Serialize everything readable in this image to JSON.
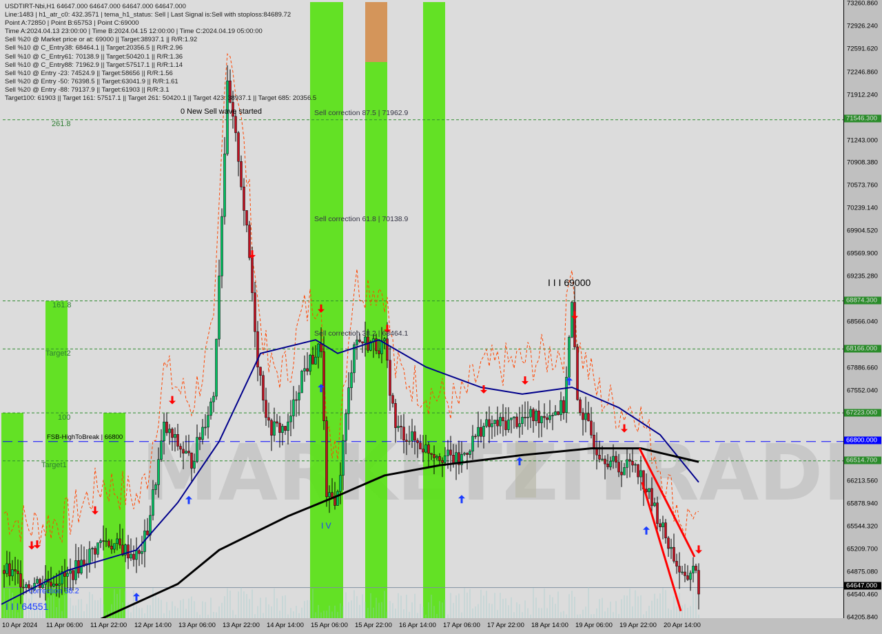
{
  "header": {
    "lines": [
      "USDTIRT-Nbi,H1  64647.000 64647.000 64647.000 64647.000",
      "Line:1483 | h1_atr_c0: 432.3571 | tema_h1_status: Sell | Last Signal is:Sell with stoploss:84689.72",
      "Point A:72850 | Point B:65753 | Point C:69000",
      "Time A:2024.04.13 23:00:00 | Time B:2024.04.15 12:00:00 | Time C:2024.04.19 05:00:00",
      "Sell %20 @ Market price or at: 69000 || Target:38937.1 || R/R:1.92",
      "Sell %10 @ C_Entry38: 68464.1 || Target:20356.5 || R/R:2.96",
      "Sell %10 @ C_Entry61: 70138.9 || Target:50420.1 || R/R:1.36",
      "Sell %10 @ C_Entry88: 71962.9 || Target:57517.1 || R/R:1.14",
      "Sell %10 @ Entry -23: 74524.9 || Target:58656 || R/R:1.56",
      "Sell %20 @ Entry -50: 76398.5 || Target:63041.9 || R/R:1.61",
      "Sell %20 @ Entry -88: 79137.9 || Target:61903 || R/R:3.1",
      "Target100: 61903 || Target 161: 57517.1 || Target 261: 50420.1 || Target 423: 38937.1 || Target 685: 20356.5"
    ]
  },
  "annotations": {
    "new_wave": "0 New Sell wave started",
    "point_c": "I I I 69000",
    "point_b": "I V",
    "bottom_left": "I I I 64551",
    "bottom_corr": "correction 38.2",
    "sell_corr_875": "Sell correction 87.5 | 71962.9",
    "sell_corr_618": "Sell correction 61.8 | 70138.9",
    "sell_corr_382": "Sell correction 38.2 | 68464.1",
    "fsb": "FSB-HighToBreak | 66800",
    "watermark": "MARKETZITRADE"
  },
  "colors": {
    "bull": "#00c060",
    "bear": "#c01020",
    "ma_blue": "#00008b",
    "ma_black": "#000000",
    "band": "#5ce01a",
    "band_orange": "#d4955a",
    "level": "#2e8b2e",
    "fsb": "#0000ff",
    "signal_sell": "#ff0000",
    "signal_buy": "#1a3cff",
    "stop": "#ff4500"
  },
  "chart_data": {
    "type": "candlestick",
    "symbol": "USDTIRT-Nbi",
    "timeframe": "H1",
    "ylim": [
      64205.84,
      73260.86
    ],
    "y_ticks": [
      "73260.860",
      "72926.240",
      "72591.620",
      "72246.860",
      "71912.240",
      "71243.000",
      "70908.380",
      "70573.760",
      "70239.140",
      "69904.520",
      "69569.900",
      "69235.280",
      "68566.040",
      "67886.660",
      "67552.040",
      "66213.560",
      "65878.940",
      "65544.320",
      "65209.700",
      "64875.080",
      "64540.460",
      "64205.840"
    ],
    "x_ticks": [
      "10 Apr 2024",
      "11 Apr 06:00",
      "11 Apr 22:00",
      "12 Apr 14:00",
      "13 Apr 06:00",
      "13 Apr 22:00",
      "14 Apr 14:00",
      "15 Apr 06:00",
      "15 Apr 22:00",
      "16 Apr 14:00",
      "17 Apr 06:00",
      "17 Apr 22:00",
      "18 Apr 14:00",
      "19 Apr 06:00",
      "19 Apr 22:00",
      "20 Apr 14:00"
    ],
    "price_path": [
      [
        "2024-04-10 15:00",
        64900
      ],
      [
        "2024-04-11 00:00",
        64700
      ],
      [
        "2024-04-11 14:00",
        64800
      ],
      [
        "2024-04-12 03:00",
        65350
      ],
      [
        "2024-04-12 16:00",
        65100
      ],
      [
        "2024-04-12 19:00",
        65500
      ],
      [
        "2024-04-13 01:00",
        67000
      ],
      [
        "2024-04-13 11:00",
        66500
      ],
      [
        "2024-04-13 19:00",
        67500
      ],
      [
        "2024-04-14 00:00",
        72000
      ],
      [
        "2024-04-14 04:00",
        71000
      ],
      [
        "2024-04-14 08:00",
        69500
      ],
      [
        "2024-04-14 11:00",
        68000
      ],
      [
        "2024-04-14 15:00",
        67000
      ],
      [
        "2024-04-14 22:00",
        67000
      ],
      [
        "2024-04-15 03:00",
        67800
      ],
      [
        "2024-04-15 10:00",
        68200
      ],
      [
        "2024-04-15 12:00",
        65900
      ],
      [
        "2024-04-15 16:00",
        66000
      ],
      [
        "2024-04-15 22:00",
        68300
      ],
      [
        "2024-04-16 09:00",
        68200
      ],
      [
        "2024-04-16 13:00",
        67000
      ],
      [
        "2024-04-17 00:00",
        66700
      ],
      [
        "2024-04-17 12:00",
        66500
      ],
      [
        "2024-04-17 20:00",
        67000
      ],
      [
        "2024-04-18 19:00",
        67200
      ],
      [
        "2024-04-19 02:00",
        67300
      ],
      [
        "2024-04-19 05:00",
        68800
      ],
      [
        "2024-04-19 07:00",
        67400
      ],
      [
        "2024-04-19 14:00",
        66700
      ],
      [
        "2024-04-19 22:00",
        66400
      ],
      [
        "2024-04-20 04:00",
        66500
      ],
      [
        "2024-04-20 10:00",
        65900
      ],
      [
        "2024-04-20 16:00",
        65300
      ],
      [
        "2024-04-20 22:00",
        64700
      ],
      [
        "2024-04-21 01:00",
        65000
      ],
      [
        "2024-04-21 03:00",
        64647
      ]
    ],
    "series": [
      {
        "values": [
          [
            "2024-04-10 14:00",
            64400
          ],
          [
            "2024-04-11 14:00",
            64900
          ],
          [
            "2024-04-12 15:00",
            65200
          ],
          [
            "2024-04-13 06:00",
            65900
          ],
          [
            "2024-04-13 21:00",
            66800
          ],
          [
            "2024-04-14 12:00",
            68100
          ],
          [
            "2024-04-15 08:00",
            68300
          ],
          [
            "2024-04-15 16:00",
            68100
          ],
          [
            "2024-04-16 07:00",
            68300
          ],
          [
            "2024-04-17 00:00",
            67900
          ],
          [
            "2024-04-17 20:00",
            67600
          ],
          [
            "2024-04-18 11:00",
            67500
          ],
          [
            "2024-04-19 05:00",
            67600
          ],
          [
            "2024-04-19 22:00",
            67300
          ],
          [
            "2024-04-20 13:00",
            66900
          ],
          [
            "2024-04-21 03:00",
            66200
          ]
        ]
      },
      {
        "values": [
          [
            "2024-04-11 14:00",
            63950
          ],
          [
            "2024-04-12 03:00",
            64200
          ],
          [
            "2024-04-13 06:00",
            64700
          ],
          [
            "2024-04-13 21:00",
            65200
          ],
          [
            "2024-04-14 22:00",
            65700
          ],
          [
            "2024-04-15 16:00",
            66000
          ],
          [
            "2024-04-16 09:00",
            66300
          ],
          [
            "2024-04-17 05:00",
            66450
          ],
          [
            "2024-04-18 11:00",
            66600
          ],
          [
            "2024-04-19 12:00",
            66700
          ],
          [
            "2024-04-20 06:00",
            66700
          ],
          [
            "2024-04-21 03:00",
            66500
          ]
        ]
      }
    ],
    "levels": [
      {
        "label": "261.8",
        "price": 71546.3,
        "tag": "71546.300"
      },
      {
        "label": "161.8",
        "price": 68874.3,
        "tag": "68874.300"
      },
      {
        "label": "Target2",
        "price": 68166.0,
        "tag": "68166.000"
      },
      {
        "label": "100",
        "price": 67223.0,
        "tag": "67223.000"
      },
      {
        "label": "Target1",
        "price": 66514.7,
        "tag": "66514.700"
      }
    ],
    "fsb_level": {
      "price": 66800.0,
      "tag": "66800.000"
    },
    "current_price": {
      "price": 64647.0,
      "tag": "64647.000"
    },
    "bands": [
      [
        "2024-04-10 14:00",
        "2024-04-10 22:00"
      ],
      [
        "2024-04-11 06:00",
        "2024-04-11 14:00"
      ],
      [
        "2024-04-12 03:00",
        "2024-04-12 11:00"
      ],
      [
        "2024-04-15 06:00",
        "2024-04-15 18:00"
      ],
      [
        "2024-04-16 02:00",
        "2024-04-16 10:00"
      ],
      [
        "2024-04-16 23:00",
        "2024-04-17 07:00"
      ]
    ],
    "signals": [
      {
        "t": "2024-04-11 01:00",
        "type": "sell"
      },
      {
        "t": "2024-04-11 03:00",
        "type": "sell"
      },
      {
        "t": "2024-04-12 00:00",
        "type": "sell"
      },
      {
        "t": "2024-04-13 04:00",
        "type": "sell"
      },
      {
        "t": "2024-04-14 09:00",
        "type": "sell"
      },
      {
        "t": "2024-04-15 10:00",
        "type": "sell"
      },
      {
        "t": "2024-04-16 10:00",
        "type": "sell"
      },
      {
        "t": "2024-04-17 21:00",
        "type": "sell"
      },
      {
        "t": "2024-04-18 12:00",
        "type": "sell"
      },
      {
        "t": "2024-04-19 06:00",
        "type": "sell"
      },
      {
        "t": "2024-04-20 00:00",
        "type": "sell"
      },
      {
        "t": "2024-04-21 03:00",
        "type": "sell"
      },
      {
        "t": "2024-04-11 00:00",
        "type": "buy"
      },
      {
        "t": "2024-04-12 15:00",
        "type": "buy"
      },
      {
        "t": "2024-04-13 10:00",
        "type": "buy"
      },
      {
        "t": "2024-04-15 10:00",
        "type": "buy"
      },
      {
        "t": "2024-04-17 13:00",
        "type": "buy"
      },
      {
        "t": "2024-04-18 10:00",
        "type": "buy"
      },
      {
        "t": "2024-04-19 04:00",
        "type": "buy"
      },
      {
        "t": "2024-04-20 08:00",
        "type": "buy"
      }
    ]
  }
}
